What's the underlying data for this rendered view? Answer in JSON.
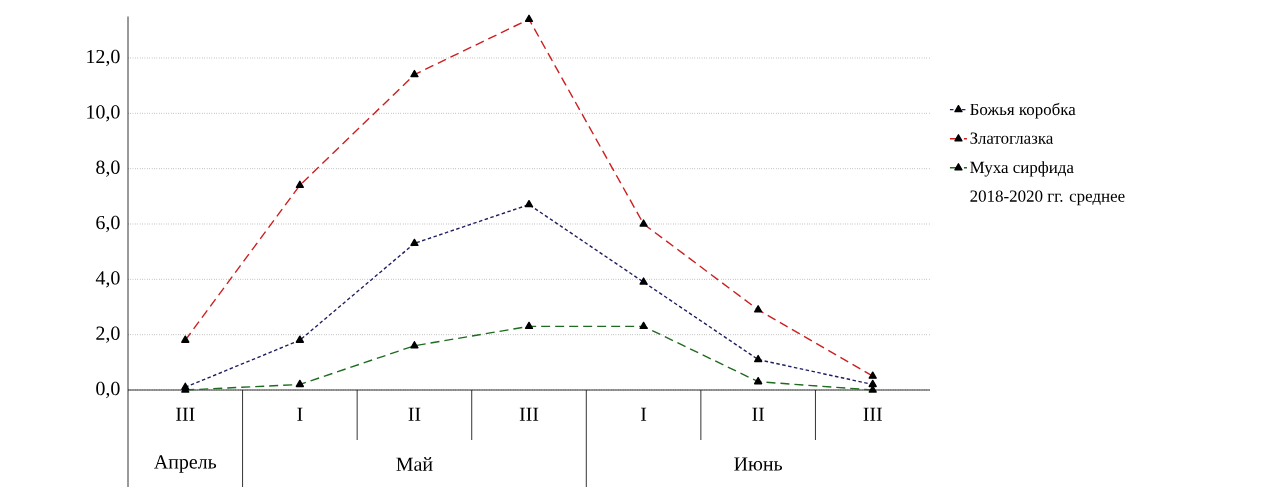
{
  "chart_data": {
    "type": "line",
    "categories": [
      "III",
      "I",
      "II",
      "III",
      "I",
      "II",
      "III"
    ],
    "series": [
      {
        "name": "Божья коробка",
        "color": "#1f1f5f",
        "line_style": "dotted",
        "values": [
          0.1,
          1.8,
          5.3,
          6.7,
          3.9,
          1.1,
          0.2
        ]
      },
      {
        "name": "Златоглазка",
        "color": "#cc1f1f",
        "line_style": "dashed",
        "values": [
          1.8,
          7.4,
          11.4,
          13.4,
          6.0,
          2.9,
          0.5
        ]
      },
      {
        "name": "Муха  сирфида",
        "color": "#1f6b1f",
        "line_style": "dashed",
        "values": [
          0.0,
          0.2,
          1.6,
          2.3,
          2.3,
          0.3,
          0.0
        ]
      }
    ],
    "ylim": [
      0,
      13.5
    ],
    "yticks": [
      {
        "value": 0,
        "label": "0,0"
      },
      {
        "value": 2,
        "label": "2,0"
      },
      {
        "value": 4,
        "label": "4,0"
      },
      {
        "value": 6,
        "label": "6,0"
      },
      {
        "value": 8,
        "label": "8,0"
      },
      {
        "value": 10,
        "label": "10,0"
      },
      {
        "value": 12,
        "label": "12,0"
      }
    ],
    "annotations": [
      "Апрель",
      "Май",
      "Июнь",
      "2018-2020  гг. среднее"
    ],
    "grid": "y",
    "legend": "right",
    "marker": "triangle"
  }
}
